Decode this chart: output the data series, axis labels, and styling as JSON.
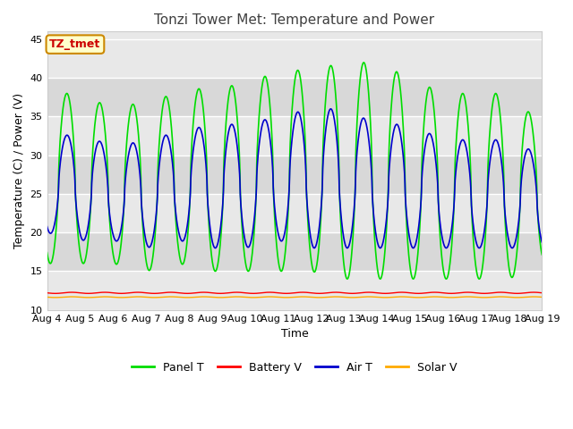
{
  "title": "Tonzi Tower Met: Temperature and Power",
  "xlabel": "Time",
  "ylabel": "Temperature (C) / Power (V)",
  "annotation": "TZ_tmet",
  "ylim": [
    10,
    46
  ],
  "xlim_days": [
    0,
    15
  ],
  "x_tick_labels": [
    "Aug 4",
    "Aug 5",
    "Aug 6",
    "Aug 7",
    "Aug 8",
    "Aug 9",
    "Aug 10",
    "Aug 11",
    "Aug 12",
    "Aug 13",
    "Aug 14",
    "Aug 15",
    "Aug 16",
    "Aug 17",
    "Aug 18",
    "Aug 19"
  ],
  "x_tick_positions": [
    0,
    1,
    2,
    3,
    4,
    5,
    6,
    7,
    8,
    9,
    10,
    11,
    12,
    13,
    14,
    15
  ],
  "panel_t_color": "#00dd00",
  "air_t_color": "#0000cc",
  "battery_v_color": "#ff0000",
  "solar_v_color": "#ffaa00",
  "fig_bg_color": "#ffffff",
  "plot_bg_color": "#e8e8e8",
  "band_color_light": "#f0f0f0",
  "band_color_dark": "#dcdcdc",
  "title_fontsize": 11,
  "label_fontsize": 9,
  "tick_fontsize": 8,
  "legend_fontsize": 9
}
